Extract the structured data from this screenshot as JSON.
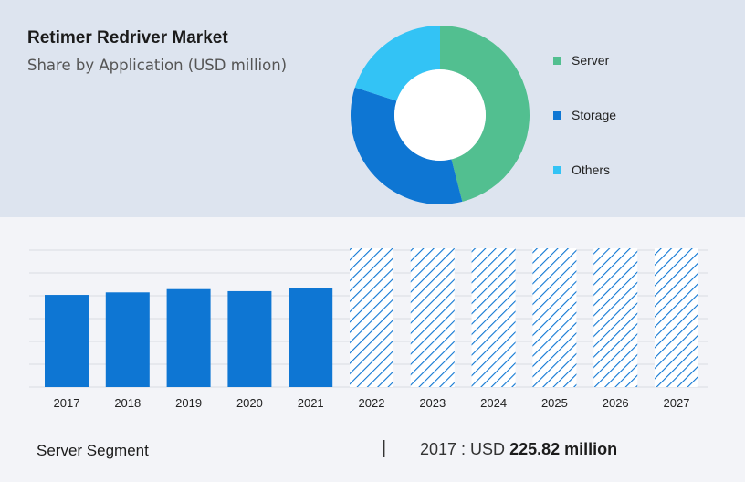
{
  "header": {
    "title": "Retimer Redriver Market",
    "subtitle": "Share by Application (USD million)"
  },
  "legend": [
    {
      "label": "Server",
      "color": "#52bf90"
    },
    {
      "label": "Storage",
      "color": "#0e76d3"
    },
    {
      "label": "Others",
      "color": "#33c3f5"
    }
  ],
  "footer": {
    "segment": "Server Segment",
    "separator": "|",
    "year_prefix": "2017 : USD",
    "value": "225.82 million"
  },
  "chart_data": [
    {
      "type": "pie",
      "variant": "donut",
      "labels": [
        "Server",
        "Storage",
        "Others"
      ],
      "values": [
        46,
        34,
        20
      ],
      "colors": [
        "#52bf90",
        "#0e76d3",
        "#33c3f5"
      ]
    },
    {
      "type": "bar",
      "categories": [
        "2017",
        "2018",
        "2019",
        "2020",
        "2021",
        "2022",
        "2023",
        "2024",
        "2025",
        "2026",
        "2027"
      ],
      "values": [
        225.82,
        232,
        240,
        235,
        242,
        null,
        null,
        null,
        null,
        null,
        null
      ],
      "forecast_categories": [
        "2022",
        "2023",
        "2024",
        "2025",
        "2026",
        "2027"
      ],
      "ylim": [
        0,
        340
      ],
      "grid": true,
      "bar_color": "#0e76d3",
      "forecast_style": "hatched"
    }
  ]
}
